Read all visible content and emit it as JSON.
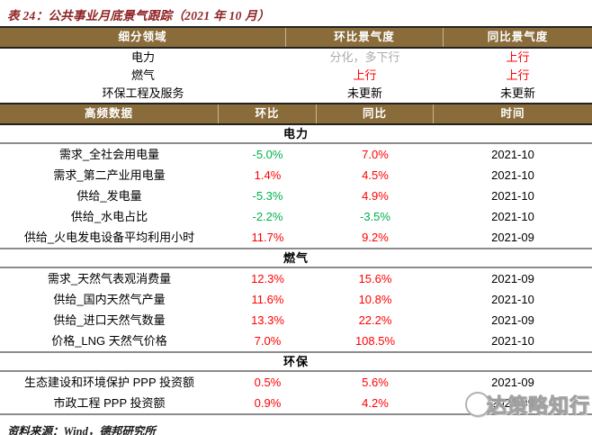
{
  "title": "表 24：公共事业月底景气跟踪（2021 年 10 月）",
  "colors": {
    "header_brown": "#8a6c3b",
    "title_maroon": "#8f2325",
    "up_red": "#ff0000",
    "down_green": "#00b050",
    "neutral_gray": "#ababab"
  },
  "overview_table": {
    "headers": [
      "细分领域",
      "环比景气度",
      "同比景气度"
    ],
    "rows": [
      {
        "segment": "电力",
        "mom": "分化，多下行",
        "mom_color": "gray",
        "yoy": "上行",
        "yoy_color": "red"
      },
      {
        "segment": "燃气",
        "mom": "上行",
        "mom_color": "red",
        "yoy": "上行",
        "yoy_color": "red"
      },
      {
        "segment": "环保工程及服务",
        "mom": "未更新",
        "mom_color": "black",
        "yoy": "未更新",
        "yoy_color": "black"
      }
    ]
  },
  "hf_table": {
    "headers": [
      "高频数据",
      "环比",
      "同比",
      "时间"
    ],
    "sections": [
      {
        "name": "电力",
        "rows": [
          {
            "indicator": "需求_全社会用电量",
            "mom": "-5.0%",
            "mom_color": "green",
            "yoy": "7.0%",
            "yoy_color": "red",
            "date": "2021-10"
          },
          {
            "indicator": "需求_第二产业用电量",
            "mom": "1.4%",
            "mom_color": "red",
            "yoy": "4.5%",
            "yoy_color": "red",
            "date": "2021-10"
          },
          {
            "indicator": "供给_发电量",
            "mom": "-5.3%",
            "mom_color": "green",
            "yoy": "4.9%",
            "yoy_color": "red",
            "date": "2021-10"
          },
          {
            "indicator": "供给_水电占比",
            "mom": "-2.2%",
            "mom_color": "green",
            "yoy": "-3.5%",
            "yoy_color": "green",
            "date": "2021-10"
          },
          {
            "indicator": "供给_火电发电设备平均利用小时",
            "mom": "11.7%",
            "mom_color": "red",
            "yoy": "9.2%",
            "yoy_color": "red",
            "date": "2021-09"
          }
        ]
      },
      {
        "name": "燃气",
        "rows": [
          {
            "indicator": "需求_天然气表观消费量",
            "mom": "12.3%",
            "mom_color": "red",
            "yoy": "15.6%",
            "yoy_color": "red",
            "date": "2021-09"
          },
          {
            "indicator": "供给_国内天然气产量",
            "mom": "11.6%",
            "mom_color": "red",
            "yoy": "10.8%",
            "yoy_color": "red",
            "date": "2021-10"
          },
          {
            "indicator": "供给_进口天然气数量",
            "mom": "13.3%",
            "mom_color": "red",
            "yoy": "22.2%",
            "yoy_color": "red",
            "date": "2021-09"
          },
          {
            "indicator": "价格_LNG 天然气价格",
            "mom": "7.0%",
            "mom_color": "red",
            "yoy": "108.5%",
            "yoy_color": "red",
            "date": "2021-10"
          }
        ]
      },
      {
        "name": "环保",
        "rows": [
          {
            "indicator": "生态建设和环境保护 PPP 投资额",
            "mom": "0.5%",
            "mom_color": "red",
            "yoy": "5.6%",
            "yoy_color": "red",
            "date": "2021-09"
          },
          {
            "indicator": "市政工程 PPP 投资额",
            "mom": "0.9%",
            "mom_color": "red",
            "yoy": "4.2%",
            "yoy_color": "red",
            "date": "2021-09"
          }
        ]
      }
    ]
  },
  "footer": {
    "source": "资料来源：Wind，德邦研究所"
  },
  "watermark": {
    "text": "达策略知行"
  }
}
